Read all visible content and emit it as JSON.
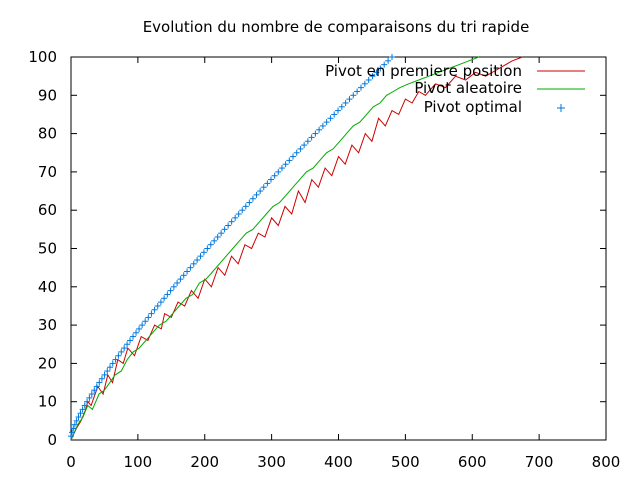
{
  "chart_data": {
    "type": "line",
    "title": "Evolution du nombre de comparaisons du tri rapide",
    "xlabel": "",
    "ylabel": "",
    "xlim": [
      0,
      800
    ],
    "ylim": [
      0,
      100
    ],
    "xticks": [
      0,
      100,
      200,
      300,
      400,
      500,
      600,
      700,
      800
    ],
    "yticks": [
      0,
      10,
      20,
      30,
      40,
      50,
      60,
      70,
      80,
      90,
      100
    ],
    "grid": false,
    "legend_position": "top-right",
    "series": [
      {
        "name": "Pivot en premiere position",
        "color": "#cc0000",
        "style": "line",
        "points": [
          [
            0,
            0
          ],
          [
            8,
            3
          ],
          [
            15,
            5
          ],
          [
            22,
            8
          ],
          [
            25,
            10
          ],
          [
            30,
            9
          ],
          [
            40,
            14
          ],
          [
            48,
            12
          ],
          [
            55,
            17
          ],
          [
            62,
            15
          ],
          [
            70,
            21
          ],
          [
            78,
            20
          ],
          [
            85,
            24
          ],
          [
            95,
            22
          ],
          [
            105,
            27
          ],
          [
            115,
            26
          ],
          [
            125,
            30
          ],
          [
            135,
            29
          ],
          [
            140,
            33
          ],
          [
            150,
            32
          ],
          [
            160,
            36
          ],
          [
            170,
            35
          ],
          [
            180,
            39
          ],
          [
            190,
            37
          ],
          [
            200,
            42
          ],
          [
            210,
            40
          ],
          [
            220,
            45
          ],
          [
            230,
            43
          ],
          [
            240,
            48
          ],
          [
            250,
            46
          ],
          [
            260,
            51
          ],
          [
            270,
            50
          ],
          [
            280,
            54
          ],
          [
            290,
            53
          ],
          [
            300,
            58
          ],
          [
            310,
            56
          ],
          [
            320,
            61
          ],
          [
            330,
            59
          ],
          [
            340,
            65
          ],
          [
            350,
            62
          ],
          [
            360,
            68
          ],
          [
            370,
            66
          ],
          [
            380,
            71
          ],
          [
            390,
            69
          ],
          [
            400,
            74
          ],
          [
            410,
            72
          ],
          [
            420,
            77
          ],
          [
            430,
            75
          ],
          [
            440,
            80
          ],
          [
            450,
            78
          ],
          [
            460,
            84
          ],
          [
            470,
            82
          ],
          [
            480,
            86
          ],
          [
            490,
            85
          ],
          [
            500,
            89
          ],
          [
            510,
            88
          ],
          [
            520,
            91
          ],
          [
            530,
            90
          ],
          [
            545,
            93
          ],
          [
            560,
            92
          ],
          [
            575,
            95
          ],
          [
            590,
            94
          ],
          [
            605,
            96
          ],
          [
            620,
            95
          ],
          [
            640,
            97
          ],
          [
            660,
            99
          ],
          [
            675,
            100
          ]
        ]
      },
      {
        "name": "Pivot aleatoire",
        "color": "#00aa00",
        "style": "line",
        "points": [
          [
            0,
            0
          ],
          [
            10,
            4
          ],
          [
            18,
            6
          ],
          [
            25,
            9
          ],
          [
            32,
            8
          ],
          [
            42,
            12
          ],
          [
            50,
            13
          ],
          [
            58,
            15
          ],
          [
            66,
            17
          ],
          [
            75,
            18
          ],
          [
            84,
            21
          ],
          [
            93,
            23
          ],
          [
            102,
            24
          ],
          [
            112,
            26
          ],
          [
            122,
            28
          ],
          [
            132,
            30
          ],
          [
            142,
            31
          ],
          [
            152,
            33
          ],
          [
            162,
            35
          ],
          [
            172,
            37
          ],
          [
            182,
            38
          ],
          [
            192,
            41
          ],
          [
            202,
            42
          ],
          [
            212,
            44
          ],
          [
            222,
            46
          ],
          [
            232,
            48
          ],
          [
            242,
            50
          ],
          [
            252,
            52
          ],
          [
            262,
            54
          ],
          [
            272,
            55
          ],
          [
            282,
            57
          ],
          [
            292,
            59
          ],
          [
            302,
            61
          ],
          [
            312,
            62
          ],
          [
            322,
            64
          ],
          [
            332,
            66
          ],
          [
            342,
            68
          ],
          [
            352,
            70
          ],
          [
            362,
            71
          ],
          [
            372,
            73
          ],
          [
            382,
            75
          ],
          [
            392,
            76
          ],
          [
            402,
            78
          ],
          [
            412,
            80
          ],
          [
            422,
            82
          ],
          [
            432,
            83
          ],
          [
            442,
            85
          ],
          [
            452,
            87
          ],
          [
            462,
            88
          ],
          [
            472,
            90
          ],
          [
            482,
            91
          ],
          [
            492,
            92
          ],
          [
            505,
            93
          ],
          [
            520,
            94
          ],
          [
            535,
            95
          ],
          [
            550,
            96
          ],
          [
            565,
            97
          ],
          [
            580,
            98
          ],
          [
            595,
            99
          ],
          [
            610,
            100
          ]
        ]
      },
      {
        "name": "Pivot optimal",
        "color": "#0077dd",
        "style": "markers",
        "marker": "+",
        "formula": "x = n*log2(n) approx, n = 1..100",
        "n_start": 1,
        "n_end": 100,
        "x_end": 480
      }
    ]
  }
}
